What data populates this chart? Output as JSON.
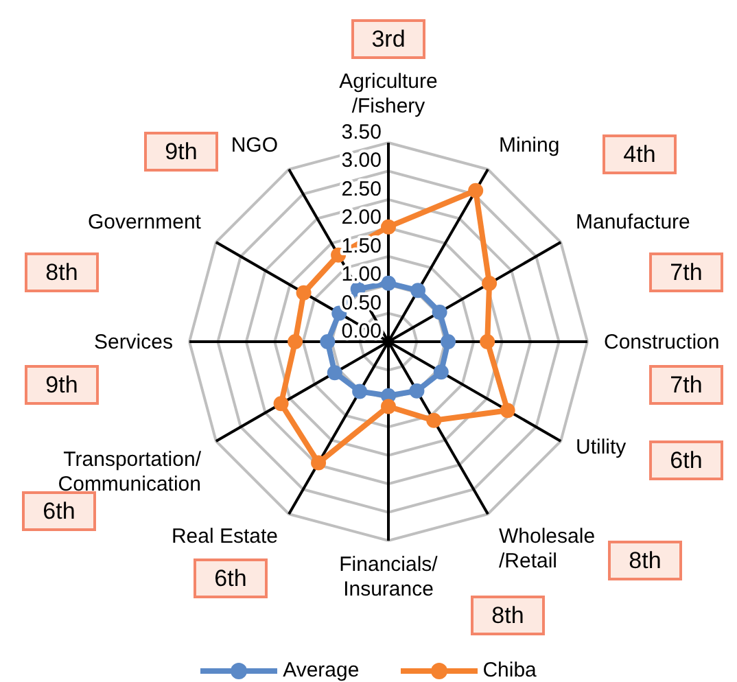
{
  "chart_data": {
    "type": "radar",
    "categories": [
      "Agriculture\n/Fishery",
      "Mining",
      "Manufacture",
      "Construction",
      "Utility",
      "Wholesale\n/Retail",
      "Financials/\nInsurance",
      "Real Estate",
      "Transportation/\nCommunication",
      "Services",
      "Government",
      "NGO"
    ],
    "series": [
      {
        "name": "Average",
        "color": "#5b89c7",
        "values": [
          1.03,
          1.04,
          1.04,
          1.05,
          1.07,
          1.0,
          0.95,
          1.01,
          1.09,
          1.07,
          1.0,
          1.07
        ]
      },
      {
        "name": "Chiba",
        "color": "#f5822f",
        "values": [
          2.02,
          3.07,
          2.05,
          1.74,
          2.42,
          1.6,
          1.14,
          2.46,
          2.18,
          1.64,
          1.72,
          1.76
        ]
      }
    ],
    "ylim": [
      0,
      3.5
    ],
    "yticks": [
      {
        "value": 0,
        "label": "0.00"
      },
      {
        "value": 0.5,
        "label": "0.50"
      },
      {
        "value": 1,
        "label": "1.00"
      },
      {
        "value": 1.5,
        "label": "1.50"
      },
      {
        "value": 2,
        "label": "2.00"
      },
      {
        "value": 2.5,
        "label": "2.50"
      },
      {
        "value": 3,
        "label": "3.00"
      },
      {
        "value": 3.5,
        "label": "3.50"
      }
    ],
    "marker": "circle",
    "legend": "bottom",
    "annotations": [
      "3rd",
      "4th",
      "7th",
      "7th",
      "6th",
      "8th",
      "8th",
      "6th",
      "6th",
      "9th",
      "8th",
      "9th"
    ]
  }
}
